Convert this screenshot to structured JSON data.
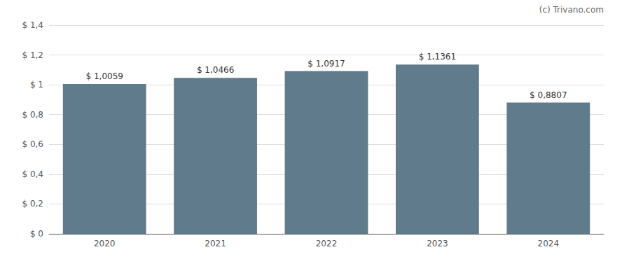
{
  "chart_data": {
    "type": "bar",
    "categories": [
      "2020",
      "2021",
      "2022",
      "2023",
      "2024"
    ],
    "values": [
      1.0059,
      1.0466,
      1.0917,
      1.1361,
      0.8807
    ],
    "value_labels": [
      "$ 1,0059",
      "$ 1,0466",
      "$ 1,0917",
      "$ 1,1361",
      "$ 0,8807"
    ],
    "color": "#607b8b",
    "ylim": [
      0,
      1.4
    ],
    "yticks": [
      {
        "value": 0,
        "label": "$ 0"
      },
      {
        "value": 0.2,
        "label": "$ 0,2"
      },
      {
        "value": 0.4,
        "label": "$ 0,4"
      },
      {
        "value": 0.6,
        "label": "$ 0,6"
      },
      {
        "value": 0.8,
        "label": "$ 0,8"
      },
      {
        "value": 1.0,
        "label": "$ 1"
      },
      {
        "value": 1.2,
        "label": "$ 1,2"
      },
      {
        "value": 1.4,
        "label": "$ 1,4"
      }
    ],
    "grid": true,
    "annotations": [
      "(c) Trivano.com"
    ]
  }
}
